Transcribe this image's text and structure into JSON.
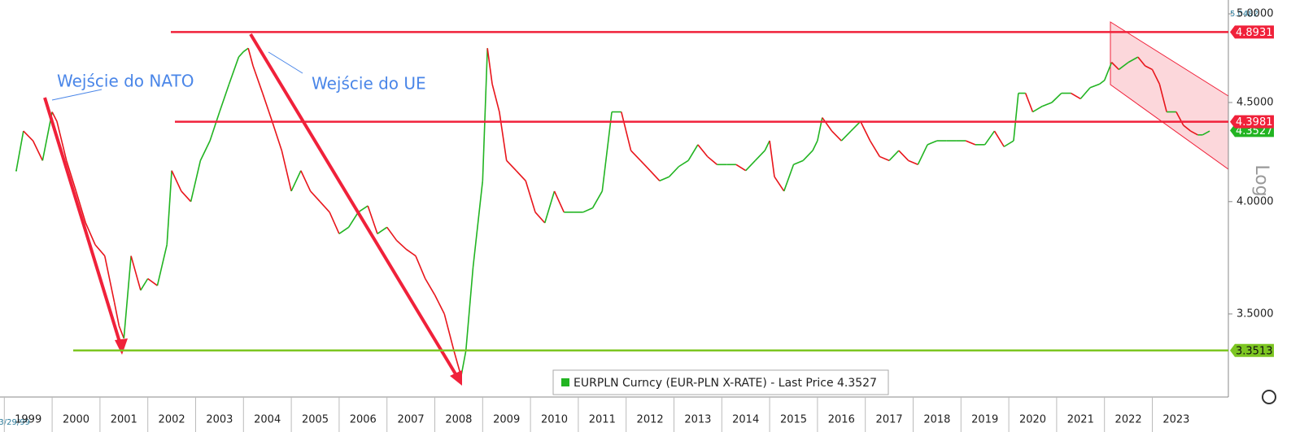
{
  "chart_data": {
    "type": "line",
    "annotations": {
      "nato": "Wejście do NATO",
      "ue": "Wejście do UE",
      "scale": "Log",
      "start_date": "03/29/99"
    },
    "high_label": 5.0482,
    "log_scale": true,
    "x": [
      1999.25,
      1999.4,
      1999.6,
      1999.8,
      2000.0,
      2000.1,
      2000.3,
      2000.5,
      2000.7,
      2000.9,
      2001.1,
      2001.3,
      2001.4,
      2001.5,
      2001.65,
      2001.85,
      2002.0,
      2002.2,
      2002.4,
      2002.5,
      2002.7,
      2002.9,
      2003.1,
      2003.3,
      2003.5,
      2003.7,
      2003.9,
      2004.0,
      2004.1,
      2004.2,
      2004.4,
      2004.6,
      2004.8,
      2005.0,
      2005.2,
      2005.4,
      2005.6,
      2005.8,
      2006.0,
      2006.2,
      2006.4,
      2006.6,
      2006.8,
      2007.0,
      2007.2,
      2007.4,
      2007.6,
      2007.8,
      2008.0,
      2008.2,
      2008.4,
      2008.55,
      2008.65,
      2008.8,
      2009.0,
      2009.1,
      2009.2,
      2009.35,
      2009.5,
      2009.7,
      2009.9,
      2010.1,
      2010.3,
      2010.5,
      2010.7,
      2010.9,
      2011.1,
      2011.3,
      2011.5,
      2011.7,
      2011.9,
      2012.1,
      2012.3,
      2012.5,
      2012.7,
      2012.9,
      2013.1,
      2013.3,
      2013.5,
      2013.7,
      2013.9,
      2014.1,
      2014.3,
      2014.5,
      2014.7,
      2014.9,
      2015.0,
      2015.1,
      2015.3,
      2015.5,
      2015.7,
      2015.9,
      2016.0,
      2016.1,
      2016.3,
      2016.5,
      2016.7,
      2016.9,
      2017.1,
      2017.3,
      2017.5,
      2017.7,
      2017.9,
      2018.1,
      2018.3,
      2018.5,
      2018.7,
      2018.9,
      2019.1,
      2019.3,
      2019.5,
      2019.7,
      2019.9,
      2020.1,
      2020.2,
      2020.35,
      2020.5,
      2020.7,
      2020.9,
      2021.1,
      2021.3,
      2021.5,
      2021.7,
      2021.9,
      2022.0,
      2022.15,
      2022.3,
      2022.5,
      2022.7,
      2022.85,
      2023.0,
      2023.15,
      2023.3,
      2023.5,
      2023.65,
      2023.8,
      2023.95,
      2024.05,
      2024.2
    ],
    "series": [
      {
        "name": "EURPLN Curncy (EUR-PLN X-RATE) - Last Price 4.3527",
        "color": "#22b422",
        "down_color": "#e8151b",
        "values": [
          4.15,
          4.35,
          4.3,
          4.2,
          4.45,
          4.4,
          4.2,
          4.05,
          3.9,
          3.8,
          3.75,
          3.55,
          3.45,
          3.4,
          3.75,
          3.6,
          3.65,
          3.62,
          3.8,
          4.15,
          4.05,
          4.0,
          4.2,
          4.3,
          4.45,
          4.6,
          4.75,
          4.78,
          4.8,
          4.7,
          4.55,
          4.4,
          4.25,
          4.05,
          4.15,
          4.05,
          4.0,
          3.95,
          3.85,
          3.88,
          3.95,
          3.98,
          3.85,
          3.88,
          3.82,
          3.78,
          3.75,
          3.65,
          3.58,
          3.5,
          3.35,
          3.25,
          3.35,
          3.7,
          4.1,
          4.8,
          4.6,
          4.45,
          4.2,
          4.15,
          4.1,
          3.95,
          3.9,
          4.05,
          3.95,
          3.95,
          3.95,
          3.97,
          4.05,
          4.45,
          4.45,
          4.25,
          4.2,
          4.15,
          4.1,
          4.12,
          4.17,
          4.2,
          4.28,
          4.22,
          4.18,
          4.18,
          4.18,
          4.15,
          4.2,
          4.25,
          4.3,
          4.12,
          4.05,
          4.18,
          4.2,
          4.25,
          4.3,
          4.42,
          4.35,
          4.3,
          4.35,
          4.4,
          4.3,
          4.22,
          4.2,
          4.25,
          4.2,
          4.18,
          4.28,
          4.3,
          4.3,
          4.3,
          4.3,
          4.28,
          4.28,
          4.35,
          4.27,
          4.3,
          4.55,
          4.55,
          4.45,
          4.48,
          4.5,
          4.55,
          4.55,
          4.52,
          4.58,
          4.6,
          4.62,
          4.72,
          4.68,
          4.72,
          4.75,
          4.7,
          4.68,
          4.6,
          4.45,
          4.45,
          4.38,
          4.35,
          4.33,
          4.33,
          4.35
        ]
      }
    ],
    "levels": [
      {
        "value": 4.8931,
        "color": "#f0213a"
      },
      {
        "value": 4.3981,
        "color": "#f0213a"
      },
      {
        "value": 3.3513,
        "color": "#7dc622"
      }
    ],
    "last_price": 4.3527,
    "xlim": [
      1998.91,
      2024.59
    ],
    "xticks": [
      {
        "value": 1999,
        "label": "1999"
      },
      {
        "value": 2000,
        "label": "2000"
      },
      {
        "value": 2001,
        "label": "2001"
      },
      {
        "value": 2002,
        "label": "2002"
      },
      {
        "value": 2003,
        "label": "2003"
      },
      {
        "value": 2004,
        "label": "2004"
      },
      {
        "value": 2005,
        "label": "2005"
      },
      {
        "value": 2006,
        "label": "2006"
      },
      {
        "value": 2007,
        "label": "2007"
      },
      {
        "value": 2008,
        "label": "2008"
      },
      {
        "value": 2009,
        "label": "2009"
      },
      {
        "value": 2010,
        "label": "2010"
      },
      {
        "value": 2011,
        "label": "2011"
      },
      {
        "value": 2012,
        "label": "2012"
      },
      {
        "value": 2013,
        "label": "2013"
      },
      {
        "value": 2014,
        "label": "2014"
      },
      {
        "value": 2015,
        "label": "2015"
      },
      {
        "value": 2016,
        "label": "2016"
      },
      {
        "value": 2017,
        "label": "2017"
      },
      {
        "value": 2018,
        "label": "2018"
      },
      {
        "value": 2019,
        "label": "2019"
      },
      {
        "value": 2020,
        "label": "2020"
      },
      {
        "value": 2021,
        "label": "2021"
      },
      {
        "value": 2022,
        "label": "2022"
      },
      {
        "value": 2023,
        "label": "2023"
      }
    ],
    "ylim": [
      3.171,
      5.083
    ],
    "yticks": [
      {
        "value": 3.5,
        "label": "3.5000"
      },
      {
        "value": 4,
        "label": "4.0000"
      },
      {
        "value": 4.5,
        "label": "4.5000"
      },
      {
        "value": 5,
        "label": "5.0000"
      }
    ]
  }
}
